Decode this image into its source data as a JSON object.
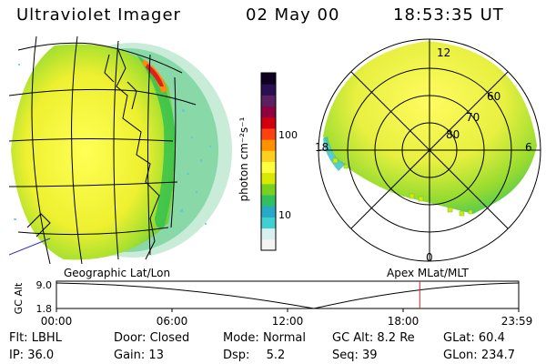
{
  "header": {
    "instrument": "Ultraviolet Imager",
    "date": "02 May 00",
    "time": "18:53:35 UT"
  },
  "colorbar": {
    "unit_label": "photon cm⁻²s⁻¹",
    "ticks": [
      "100",
      "10"
    ],
    "colors": [
      "#f4f4f4",
      "#d8f0f0",
      "#40d0d0",
      "#2aa8c8",
      "#30c060",
      "#78d020",
      "#d8e800",
      "#ffff40",
      "#ffd020",
      "#ff9000",
      "#ff4010",
      "#d00010",
      "#900040",
      "#5a2060",
      "#2a1050",
      "#100020"
    ]
  },
  "polar_plot": {
    "title": "Apex MLat/MLT",
    "mlt_labels": [
      "12",
      "18",
      "6",
      "0"
    ],
    "mlat_labels": [
      "60",
      "70",
      "80"
    ]
  },
  "geo_plot": {
    "title": "Geographic Lat/Lon"
  },
  "timeline": {
    "axis_label": "GC Alt",
    "y_ticks": [
      "9.0",
      "1.8"
    ],
    "x_ticks": [
      "00:00",
      "06:00",
      "12:00",
      "18:00",
      "23:59"
    ],
    "current_time_fraction": 0.786
  },
  "info": {
    "flt_label": "Flt:",
    "flt_value": "LBHL",
    "ip_label": "IP:",
    "ip_value": "36.0",
    "door_label": "Door:",
    "door_value": "Closed",
    "gain_label": "Gain:",
    "gain_value": "13",
    "mode_label": "Mode:",
    "mode_value": "Normal",
    "dsp_label": "Dsp:",
    "dsp_value": "5.2",
    "gcalt_label": "GC Alt:",
    "gcalt_value": "8.2 Re",
    "seq_label": "Seq:",
    "seq_value": "39",
    "glat_label": "GLat:",
    "glat_value": "60.4",
    "glon_label": "GLon:",
    "glon_value": "234.7"
  }
}
